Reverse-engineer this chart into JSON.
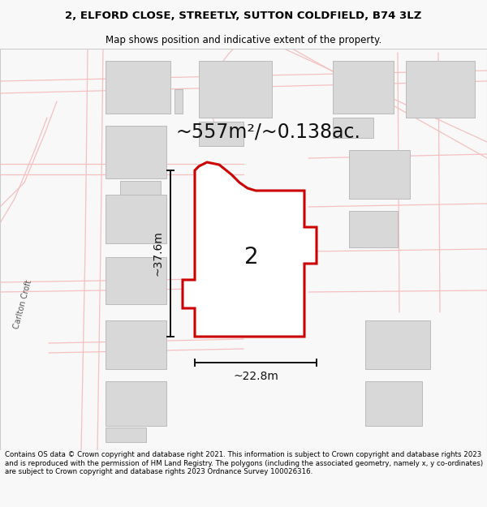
{
  "title_line1": "2, ELFORD CLOSE, STREETLY, SUTTON COLDFIELD, B74 3LZ",
  "title_line2": "Map shows position and indicative extent of the property.",
  "area_text": "~557m²/~0.138ac.",
  "width_label": "~22.8m",
  "height_label": "~37.6m",
  "number_label": "2",
  "footer_text": "Contains OS data © Crown copyright and database right 2021. This information is subject to Crown copyright and database rights 2023 and is reproduced with the permission of HM Land Registry. The polygons (including the associated geometry, namely x, y co-ordinates) are subject to Crown copyright and database rights 2023 Ordnance Survey 100026316.",
  "bg_color": "#f8f8f8",
  "map_bg": "#ffffff",
  "property_fill": "#ffffff",
  "property_edge": "#cc0000",
  "building_fill": "#d8d8d8",
  "building_edge": "#bbbbbb",
  "road_color": "#f5c0c0",
  "road_lw": 0.9,
  "dim_line_color": "#111111",
  "street_label": "Carlton Croft",
  "title_fontsize": 9.5,
  "subtitle_fontsize": 8.5,
  "area_fontsize": 17,
  "label_fontsize": 10,
  "number_fontsize": 20,
  "footer_fontsize": 6.2,
  "street_label_fontsize": 7
}
